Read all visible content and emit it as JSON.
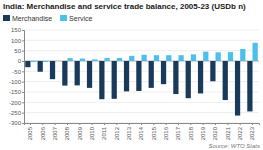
{
  "chart_data": {
    "type": "bar",
    "title": "India: Merchandise and service trade balance, 2005-23 (USDb n)",
    "categories": [
      "2005",
      "2006",
      "2007",
      "2008",
      "2009",
      "2010",
      "2011",
      "2012",
      "2013",
      "2014",
      "2015",
      "2016",
      "2017",
      "2018",
      "2019",
      "2020",
      "2021",
      "2022",
      "2023"
    ],
    "series": [
      {
        "name": "Merchandise",
        "color": "#1a3a5c",
        "values": [
          -30,
          -52,
          -88,
          -119,
          -118,
          -130,
          -185,
          -183,
          -147,
          -145,
          -130,
          -112,
          -160,
          -180,
          -157,
          -98,
          -189,
          -264,
          -244
        ]
      },
      {
        "name": "Service",
        "color": "#4dbfeb",
        "values": [
          -5,
          -5,
          0,
          14,
          12,
          8,
          15,
          15,
          25,
          30,
          28,
          28,
          28,
          32,
          45,
          42,
          43,
          58,
          88
        ]
      }
    ],
    "ylim": [
      -300,
      150
    ],
    "yticks": [
      -300,
      -250,
      -200,
      -150,
      -100,
      -50,
      0,
      50,
      100,
      150
    ],
    "grid": true,
    "legend": "upper left",
    "annotations": [
      "Source: WTO Stats"
    ]
  }
}
